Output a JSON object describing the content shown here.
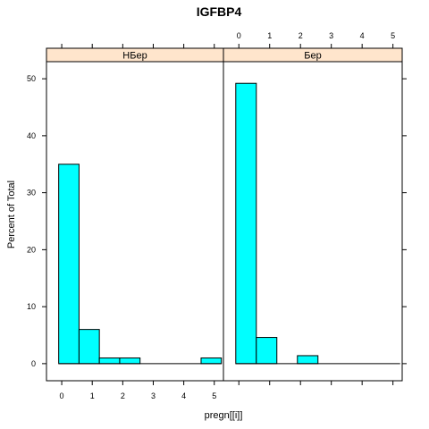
{
  "chart_data": {
    "type": "bar",
    "title": "IGFBP4",
    "xlabel": "pregn[[i]]",
    "ylabel": "Percent of Total",
    "xlim": [
      -0.5,
      5.3
    ],
    "ylim": [
      -3,
      53
    ],
    "x_ticks": [
      "0",
      "1",
      "2",
      "3",
      "4",
      "5"
    ],
    "y_ticks": [
      "0",
      "10",
      "20",
      "30",
      "40",
      "50"
    ],
    "bin_width": 0.667,
    "bar_color": "#00ffff",
    "strip_color": "#ffe5cc",
    "panels": [
      {
        "label": "НБер",
        "bins": [
          {
            "x0": -0.1,
            "x1": 0.567,
            "value": 35
          },
          {
            "x0": 0.567,
            "x1": 1.233,
            "value": 6
          },
          {
            "x0": 1.233,
            "x1": 1.9,
            "value": 1
          },
          {
            "x0": 1.9,
            "x1": 2.567,
            "value": 1
          },
          {
            "x0": 4.567,
            "x1": 5.233,
            "value": 1
          }
        ]
      },
      {
        "label": "Бер",
        "bins": [
          {
            "x0": -0.1,
            "x1": 0.567,
            "value": 49.2
          },
          {
            "x0": 0.567,
            "x1": 1.233,
            "value": 4.6
          },
          {
            "x0": 1.9,
            "x1": 2.567,
            "value": 1.4
          }
        ]
      }
    ]
  }
}
